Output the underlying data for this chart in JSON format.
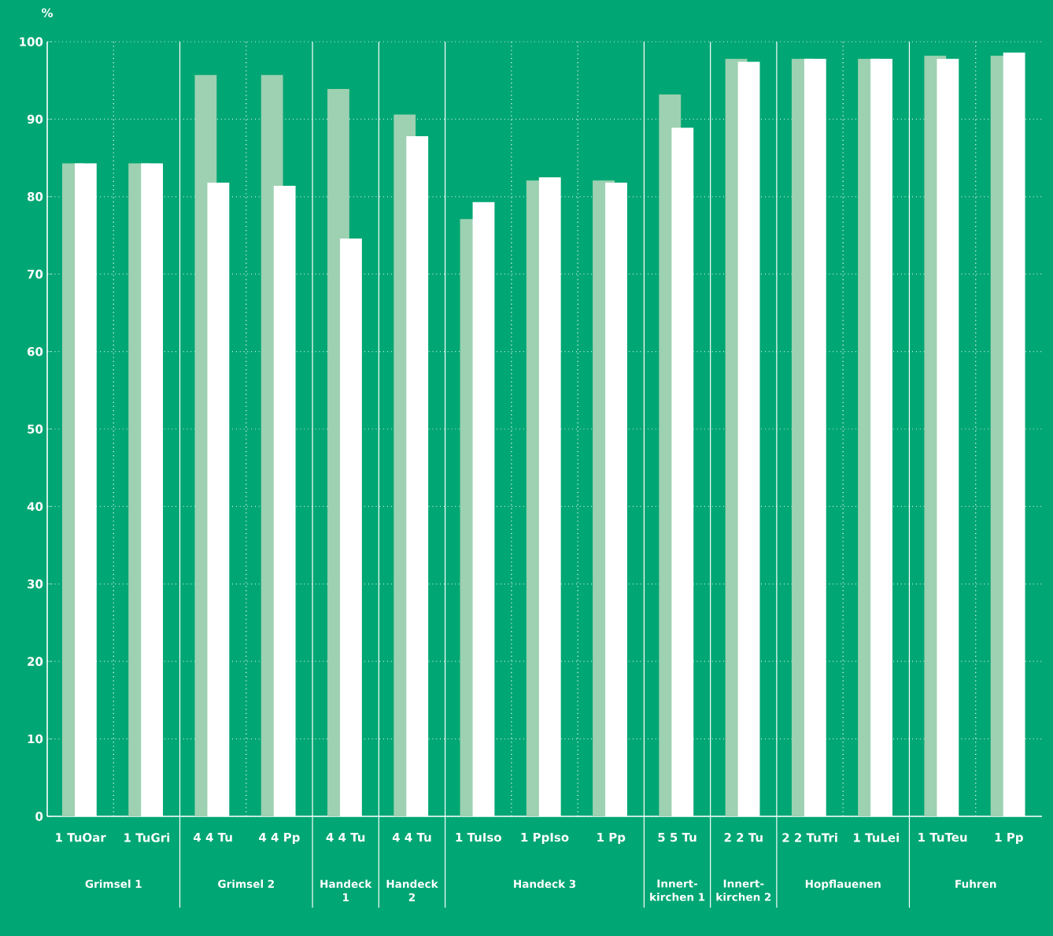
{
  "chart_data": {
    "type": "bar",
    "ylabel": "%",
    "categories": [
      "1 TuOar",
      "1 TuGri",
      "4 4 Tu",
      "4 4 Pp",
      "4 4 Tu",
      "4 4 Tu",
      "1 TuIso",
      "1 PpIso",
      "1 Pp",
      "5 5 Tu",
      "2 2 Tu",
      "2 2 TuTri",
      "1 TuLei",
      "1 TuTeu",
      "1 Pp"
    ],
    "series": [
      {
        "color": "#9dd1b1",
        "values": [
          84.3,
          84.3,
          95.7,
          95.7,
          93.9,
          90.6,
          77.1,
          82.1,
          82.1,
          93.2,
          97.8,
          97.8,
          97.8,
          98.2,
          98.2
        ]
      },
      {
        "color": "#ffffff",
        "values": [
          84.3,
          84.3,
          81.8,
          81.4,
          74.6,
          87.8,
          79.3,
          82.5,
          81.8,
          88.9,
          97.4,
          97.8,
          97.8,
          97.8,
          98.6
        ]
      }
    ],
    "ylim": [
      0,
      100
    ],
    "yticks": [
      0,
      10,
      20,
      30,
      40,
      50,
      60,
      70,
      80,
      90,
      100
    ],
    "grid": true,
    "annotations": [
      "Grimsel 1",
      "Grimsel 2",
      "Handeck 1",
      "Handeck 2",
      "Handeck 3",
      "Innert-kirchen 1",
      "Innert-kirchen 2",
      "Hopflauenen",
      "Fuhren"
    ]
  }
}
